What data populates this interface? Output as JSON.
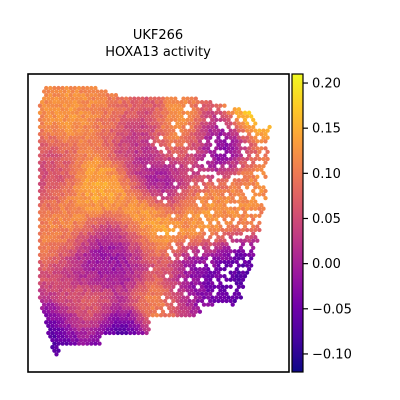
{
  "chart_data": {
    "type": "heatmap",
    "title": "UKF266",
    "subtitle": "HOXA13 activity",
    "xlabel": "",
    "ylabel": "",
    "grid": false,
    "colormap": "plasma",
    "colorbar": {
      "min": -0.12,
      "max": 0.21,
      "ticks": [
        0.2,
        0.15,
        0.1,
        0.05,
        0.0,
        -0.05,
        -0.1
      ],
      "tick_labels": [
        "0.20",
        "0.15",
        "0.10",
        "0.05",
        "0.00",
        "−0.05",
        "−0.10"
      ]
    },
    "hotspots": [
      {
        "x": 0.12,
        "y": 0.1,
        "value": 0.14
      },
      {
        "x": 0.32,
        "y": 0.1,
        "value": 0.12
      },
      {
        "x": 0.6,
        "y": 0.18,
        "value": 0.17
      },
      {
        "x": 0.9,
        "y": 0.05,
        "value": 0.2
      },
      {
        "x": 0.25,
        "y": 0.35,
        "value": 0.16
      },
      {
        "x": 0.45,
        "y": 0.52,
        "value": 0.2
      },
      {
        "x": 0.12,
        "y": 0.52,
        "value": 0.13
      },
      {
        "x": 0.67,
        "y": 0.42,
        "value": 0.15
      },
      {
        "x": 0.88,
        "y": 0.38,
        "value": 0.13
      },
      {
        "x": 0.52,
        "y": 0.78,
        "value": 0.14
      },
      {
        "x": 0.2,
        "y": 0.82,
        "value": 0.11
      },
      {
        "x": 0.73,
        "y": 0.22,
        "value": -0.07
      },
      {
        "x": 0.55,
        "y": 0.33,
        "value": -0.04
      },
      {
        "x": 0.38,
        "y": 0.6,
        "value": -0.05
      },
      {
        "x": 0.22,
        "y": 0.64,
        "value": -0.03
      },
      {
        "x": 0.33,
        "y": 0.93,
        "value": -0.11
      },
      {
        "x": 0.1,
        "y": 0.92,
        "value": -0.1
      },
      {
        "x": 0.86,
        "y": 0.72,
        "value": -0.09
      },
      {
        "x": 0.64,
        "y": 0.74,
        "value": -0.06
      },
      {
        "x": 0.4,
        "y": 0.18,
        "value": 0.0
      },
      {
        "x": 0.06,
        "y": 0.3,
        "value": 0.05
      }
    ]
  },
  "colors": {
    "plasma": [
      "#0d0887",
      "#46039f",
      "#7201a8",
      "#9c179e",
      "#bd3786",
      "#d8576b",
      "#ed7953",
      "#fb9f3a",
      "#fdca26",
      "#f0f921"
    ]
  }
}
